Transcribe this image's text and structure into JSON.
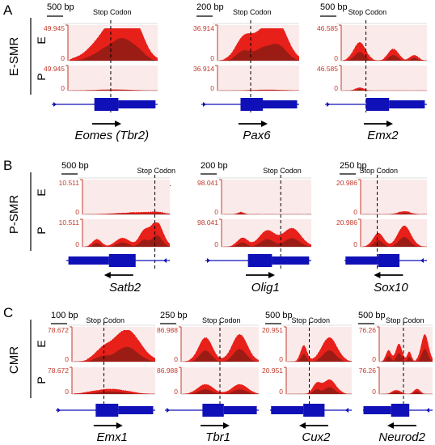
{
  "panels": [
    {
      "letter": "A",
      "category": "E-SMR",
      "row_labels": [
        "E",
        "P"
      ],
      "tracks": [
        {
          "scale": "500 bp",
          "stop_codon": "Stop Codon",
          "sc": "S.C.",
          "ymax": "49.945",
          "ymin": "0",
          "gene": "Eomes (Tbr2)",
          "strand": "right",
          "e_peaks": [
            [
              0.45,
              0.85,
              0.18
            ],
            [
              0.62,
              1.0,
              0.12
            ],
            [
              0.78,
              0.55,
              0.1
            ]
          ],
          "p_peaks": [
            [
              0.5,
              0.05,
              0.2
            ]
          ]
        },
        {
          "scale": "200 bp",
          "stop_codon": "Stop Codon",
          "sc": "S.C.",
          "ymax": "36.914",
          "ymin": "0",
          "gene": "Pax6",
          "strand": "right",
          "e_peaks": [
            [
              0.3,
              0.6,
              0.1
            ],
            [
              0.55,
              0.8,
              0.14
            ],
            [
              0.75,
              0.9,
              0.12
            ]
          ],
          "p_peaks": [
            [
              0.6,
              0.04,
              0.2
            ]
          ]
        },
        {
          "scale": "500 bp",
          "stop_codon": "Stop Codon",
          "sc": "S.C.",
          "ymax": "46.585",
          "ymin": "0",
          "gene": "Emx2",
          "strand": "right",
          "e_peaks": [
            [
              0.2,
              0.55,
              0.07
            ],
            [
              0.6,
              0.35,
              0.06
            ],
            [
              0.85,
              0.15,
              0.05
            ]
          ],
          "p_peaks": [
            [
              0.2,
              0.12,
              0.05
            ]
          ]
        }
      ]
    },
    {
      "letter": "B",
      "category": "P-SMR",
      "row_labels": [
        "E",
        "P"
      ],
      "tracks": [
        {
          "scale": "500 bp",
          "stop_codon": "Stop Codon",
          "sc": "S.C.",
          "ymax": "10.511",
          "ymin": "0",
          "gene": "Satb2",
          "strand": "left",
          "e_peaks": [
            [
              0.55,
              0.05,
              0.2
            ],
            [
              0.85,
              0.05,
              0.1
            ]
          ],
          "p_peaks": [
            [
              0.15,
              0.3,
              0.05
            ],
            [
              0.45,
              0.35,
              0.08
            ],
            [
              0.7,
              0.6,
              0.06
            ],
            [
              0.85,
              1.0,
              0.07
            ]
          ]
        },
        {
          "scale": "200 bp",
          "stop_codon": "Stop Codon",
          "sc": "S.C.",
          "ymax": "98.041",
          "ymin": "0",
          "gene": "Olig1",
          "strand": "right",
          "e_peaks": [
            [
              0.2,
              0.06,
              0.04
            ]
          ],
          "p_peaks": [
            [
              0.22,
              0.35,
              0.06
            ],
            [
              0.5,
              0.65,
              0.09
            ],
            [
              0.78,
              0.75,
              0.1
            ]
          ]
        },
        {
          "scale": "250 bp",
          "stop_codon": "Stop Codon",
          "sc": "S.C.",
          "ymax": "20.986",
          "ymin": "0",
          "gene": "Sox10",
          "strand": "left",
          "e_peaks": [
            [
              0.65,
              0.08,
              0.1
            ]
          ],
          "p_peaks": [
            [
              0.25,
              0.55,
              0.08
            ],
            [
              0.65,
              0.85,
              0.1
            ]
          ]
        }
      ]
    },
    {
      "letter": "C",
      "category": "CMR",
      "row_labels": [
        "E",
        "P"
      ],
      "tracks": [
        {
          "scale": "100 bp",
          "stop_codon": "Stop Codon",
          "sc": "S.C.",
          "ymax": "78.672",
          "ymin": "0",
          "gene": "Emx1",
          "strand": "right",
          "e_peaks": [
            [
              0.35,
              0.3,
              0.1
            ],
            [
              0.65,
              1.0,
              0.16
            ]
          ],
          "p_peaks": [
            [
              0.45,
              0.2,
              0.2
            ]
          ]
        },
        {
          "scale": "250 bp",
          "stop_codon": "Stop Codon",
          "sc": "S.C.",
          "ymax": "86.988",
          "ymin": "0",
          "gene": "Tbr1",
          "strand": "right",
          "e_peaks": [
            [
              0.3,
              0.75,
              0.09
            ],
            [
              0.75,
              0.85,
              0.1
            ]
          ],
          "p_peaks": [
            [
              0.3,
              0.4,
              0.1
            ],
            [
              0.75,
              0.4,
              0.1
            ]
          ]
        },
        {
          "scale": "500 bp",
          "stop_codon": "Stop Codon",
          "sc": "S.C.",
          "ymax": "20.951",
          "ymin": "0",
          "gene": "Cux2",
          "strand": "left",
          "e_peaks": [
            [
              0.25,
              0.5,
              0.05
            ],
            [
              0.65,
              0.75,
              0.12
            ]
          ],
          "p_peaks": [
            [
              0.45,
              0.4,
              0.06
            ],
            [
              0.65,
              0.6,
              0.1
            ]
          ]
        },
        {
          "scale": "500 bp",
          "stop_codon": "Stop Codon",
          "sc": "S.C.",
          "ymax": "76.26",
          "ymin": "0",
          "gene": "Neurod2",
          "strand": "left",
          "e_peaks": [
            [
              0.15,
              0.35,
              0.05
            ],
            [
              0.35,
              0.55,
              0.06
            ],
            [
              0.55,
              0.3,
              0.04
            ],
            [
              0.85,
              0.85,
              0.07
            ]
          ],
          "p_peaks": [
            [
              0.3,
              0.15,
              0.08
            ],
            [
              0.7,
              0.2,
              0.06
            ]
          ]
        }
      ]
    }
  ],
  "colors": {
    "signal": "#e8201a",
    "signal_dark": "#5b1a12",
    "axis": "#c0392b",
    "gene_model": "#1010b8",
    "track_bg": "#fbeaea"
  }
}
